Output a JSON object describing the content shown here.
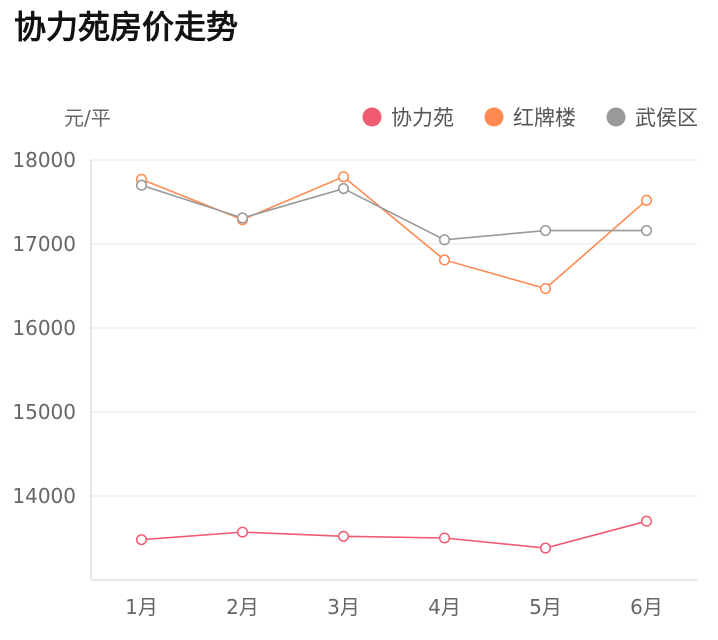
{
  "page": {
    "title": "协力苑房价走势"
  },
  "chart_data": {
    "type": "line",
    "title": "协力苑房价走势",
    "ylabel": "元/平",
    "xlabel": "",
    "categories": [
      "1月",
      "2月",
      "3月",
      "4月",
      "5月",
      "6月"
    ],
    "ylim": [
      13000,
      18000
    ],
    "yticks": [
      18000,
      17000,
      16000,
      15000,
      14000
    ],
    "ytick_labels": [
      "18000",
      "17000",
      "16000",
      "15000",
      "14000"
    ],
    "grid": true,
    "legend_position": "top-right",
    "series": [
      {
        "name": "协力苑",
        "color": "#f05b72",
        "values": [
          13480,
          13570,
          13520,
          13500,
          13380,
          13700
        ]
      },
      {
        "name": "红牌楼",
        "color": "#fe8a52",
        "values": [
          17770,
          17290,
          17800,
          16810,
          16470,
          17520
        ]
      },
      {
        "name": "武侯区",
        "color": "#999999",
        "values": [
          17700,
          17310,
          17660,
          17050,
          17160,
          17160
        ]
      }
    ]
  }
}
